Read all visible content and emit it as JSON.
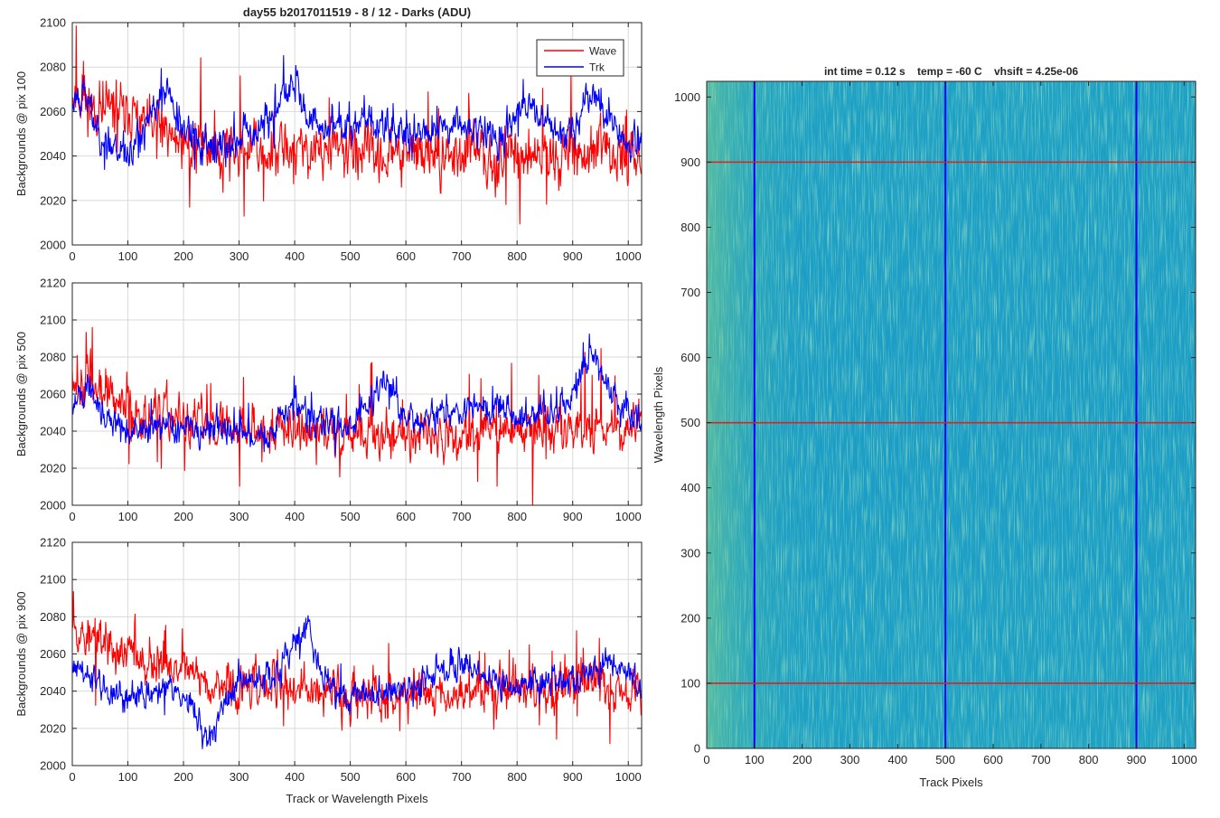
{
  "figure": {
    "title": "day55 b2017011519 - 8 / 12 - Darks (ADU)"
  },
  "colors": {
    "wave": "#ff0000",
    "trk": "#0000ff",
    "grid": "#d9d9d9",
    "axis": "#262626",
    "img_base": "#1b9fc4",
    "img_streak": "#5ec98a"
  },
  "chart_data": [
    {
      "type": "line",
      "name": "pix100",
      "title": "day55 b2017011519 - 8 / 12 - Darks (ADU)",
      "xlabel": "",
      "ylabel": "Backgrounds @ pix 100",
      "xlim": [
        0,
        1024
      ],
      "ylim": [
        2000,
        2100
      ],
      "xticks": [
        0,
        100,
        200,
        300,
        400,
        500,
        600,
        700,
        800,
        900,
        1000
      ],
      "yticks": [
        2000,
        2020,
        2040,
        2060,
        2080,
        2100
      ],
      "grid": true,
      "legend": {
        "position": "top-right",
        "entries": [
          "Wave",
          "Trk"
        ]
      },
      "series": [
        {
          "name": "Wave",
          "color": "#ff0000",
          "base": 2045,
          "noise": 9,
          "spike": 30,
          "seed": 11,
          "anchors": [
            [
              0,
              2068
            ],
            [
              40,
              2062
            ],
            [
              80,
              2060
            ],
            [
              130,
              2055
            ],
            [
              200,
              2046
            ],
            [
              300,
              2043
            ],
            [
              500,
              2042
            ],
            [
              700,
              2040
            ],
            [
              900,
              2041
            ],
            [
              1024,
              2042
            ]
          ]
        },
        {
          "name": "Trk",
          "color": "#0000ff",
          "base": 2048,
          "noise": 6,
          "spike": 14,
          "seed": 23,
          "anchors": [
            [
              0,
              2062
            ],
            [
              20,
              2070
            ],
            [
              50,
              2050
            ],
            [
              100,
              2040
            ],
            [
              170,
              2070
            ],
            [
              200,
              2050
            ],
            [
              250,
              2043
            ],
            [
              300,
              2048
            ],
            [
              350,
              2055
            ],
            [
              400,
              2072
            ],
            [
              430,
              2052
            ],
            [
              550,
              2055
            ],
            [
              600,
              2050
            ],
            [
              700,
              2055
            ],
            [
              750,
              2050
            ],
            [
              780,
              2048
            ],
            [
              800,
              2062
            ],
            [
              850,
              2055
            ],
            [
              900,
              2050
            ],
            [
              930,
              2070
            ],
            [
              960,
              2060
            ],
            [
              1000,
              2045
            ],
            [
              1024,
              2050
            ]
          ]
        }
      ]
    },
    {
      "type": "line",
      "name": "pix500",
      "title": "",
      "xlabel": "",
      "ylabel": "Backgrounds @ pix 500",
      "xlim": [
        0,
        1024
      ],
      "ylim": [
        2000,
        2120
      ],
      "xticks": [
        0,
        100,
        200,
        300,
        400,
        500,
        600,
        700,
        800,
        900,
        1000
      ],
      "yticks": [
        2000,
        2020,
        2040,
        2060,
        2080,
        2100,
        2120
      ],
      "grid": true,
      "series": [
        {
          "name": "Wave",
          "color": "#ff0000",
          "base": 2042,
          "noise": 9,
          "spike": 35,
          "seed": 37,
          "anchors": [
            [
              0,
              2068
            ],
            [
              50,
              2060
            ],
            [
              100,
              2052
            ],
            [
              200,
              2045
            ],
            [
              400,
              2040
            ],
            [
              600,
              2038
            ],
            [
              800,
              2040
            ],
            [
              1024,
              2042
            ]
          ]
        },
        {
          "name": "Trk",
          "color": "#0000ff",
          "base": 2042,
          "noise": 6,
          "spike": 14,
          "seed": 41,
          "anchors": [
            [
              0,
              2050
            ],
            [
              30,
              2065
            ],
            [
              60,
              2048
            ],
            [
              100,
              2040
            ],
            [
              200,
              2042
            ],
            [
              300,
              2040
            ],
            [
              350,
              2035
            ],
            [
              400,
              2055
            ],
            [
              430,
              2045
            ],
            [
              500,
              2042
            ],
            [
              560,
              2068
            ],
            [
              600,
              2045
            ],
            [
              700,
              2050
            ],
            [
              780,
              2055
            ],
            [
              800,
              2045
            ],
            [
              900,
              2055
            ],
            [
              930,
              2085
            ],
            [
              960,
              2065
            ],
            [
              1000,
              2050
            ],
            [
              1024,
              2045
            ]
          ]
        }
      ]
    },
    {
      "type": "line",
      "name": "pix900",
      "title": "",
      "xlabel": "Track or Wavelength Pixels",
      "ylabel": "Backgrounds @ pix 900",
      "xlim": [
        0,
        1024
      ],
      "ylim": [
        2000,
        2120
      ],
      "xticks": [
        0,
        100,
        200,
        300,
        400,
        500,
        600,
        700,
        800,
        900,
        1000
      ],
      "yticks": [
        2000,
        2020,
        2040,
        2060,
        2080,
        2100,
        2120
      ],
      "grid": true,
      "series": [
        {
          "name": "Wave",
          "color": "#ff0000",
          "base": 2042,
          "noise": 9,
          "spike": 30,
          "seed": 53,
          "anchors": [
            [
              0,
              2085
            ],
            [
              15,
              2070
            ],
            [
              50,
              2065
            ],
            [
              100,
              2060
            ],
            [
              200,
              2050
            ],
            [
              300,
              2042
            ],
            [
              500,
              2038
            ],
            [
              700,
              2040
            ],
            [
              900,
              2042
            ],
            [
              1024,
              2042
            ]
          ]
        },
        {
          "name": "Trk",
          "color": "#0000ff",
          "base": 2040,
          "noise": 6,
          "spike": 12,
          "seed": 61,
          "anchors": [
            [
              0,
              2055
            ],
            [
              40,
              2045
            ],
            [
              80,
              2035
            ],
            [
              120,
              2038
            ],
            [
              180,
              2042
            ],
            [
              220,
              2030
            ],
            [
              245,
              2012
            ],
            [
              270,
              2030
            ],
            [
              300,
              2045
            ],
            [
              360,
              2045
            ],
            [
              400,
              2065
            ],
            [
              420,
              2080
            ],
            [
              450,
              2045
            ],
            [
              500,
              2038
            ],
            [
              600,
              2040
            ],
            [
              700,
              2055
            ],
            [
              750,
              2045
            ],
            [
              800,
              2042
            ],
            [
              900,
              2045
            ],
            [
              960,
              2055
            ],
            [
              1000,
              2050
            ],
            [
              1024,
              2040
            ]
          ]
        }
      ]
    },
    {
      "type": "heatmap",
      "name": "image",
      "title": "int time = 0.12 s    temp = -60 C    vhsift = 4.25e-06",
      "xlabel": "Track Pixels",
      "ylabel": "Wavelength Pixels",
      "xlim": [
        0,
        1024
      ],
      "ylim": [
        0,
        1024
      ],
      "xticks": [
        0,
        100,
        200,
        300,
        400,
        500,
        600,
        700,
        800,
        900,
        1000
      ],
      "yticks": [
        0,
        100,
        200,
        300,
        400,
        500,
        600,
        700,
        800,
        900,
        1000
      ],
      "vertical_markers": [
        100,
        500,
        900
      ],
      "horizontal_markers": [
        100,
        500,
        900
      ]
    }
  ]
}
